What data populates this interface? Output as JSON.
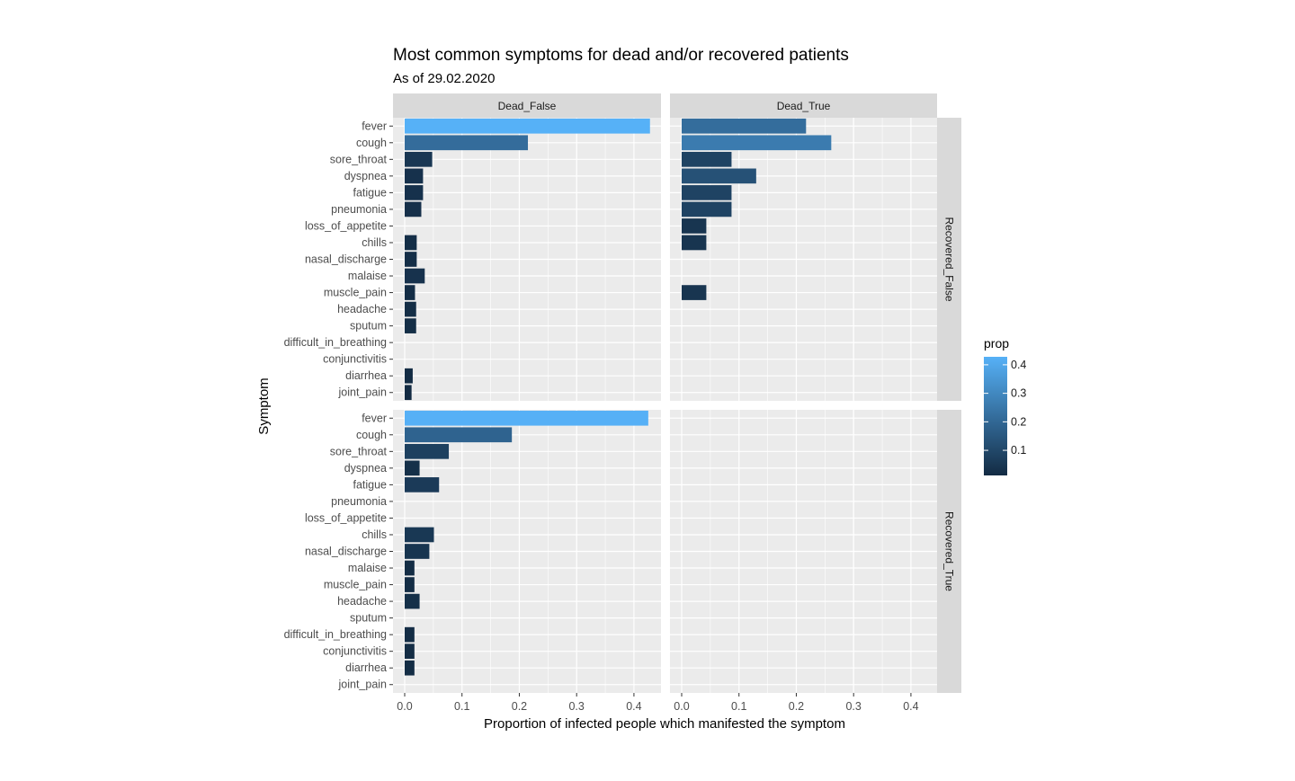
{
  "chart_data": {
    "type": "bar",
    "orientation": "horizontal",
    "title": "Most common symptoms for dead and/or recovered patients",
    "subtitle": "As of 29.02.2020",
    "xlabel": "Proportion of infected people which manifested the symptom",
    "ylabel": "Symptom",
    "xlim": [
      0,
      0.45
    ],
    "x_ticks": [
      0,
      0.1,
      0.2,
      0.3,
      0.4
    ],
    "x_tick_labels": [
      "0.0",
      "0.1",
      "0.2",
      "0.3",
      "0.4"
    ],
    "categories": [
      "fever",
      "cough",
      "sore_throat",
      "dyspnea",
      "fatigue",
      "pneumonia",
      "loss_of_appetite",
      "chills",
      "nasal_discharge",
      "malaise",
      "muscle_pain",
      "headache",
      "sputum",
      "difficult_in_breathing",
      "conjunctivitis",
      "diarrhea",
      "joint_pain"
    ],
    "facet_cols": [
      "Dead_False",
      "Dead_True"
    ],
    "facet_rows": [
      "Recovered_False",
      "Recovered_True"
    ],
    "panels": [
      {
        "col": "Dead_False",
        "row": "Recovered_False",
        "values": [
          0.428,
          0.215,
          0.048,
          0.032,
          0.032,
          0.029,
          0,
          0.021,
          0.021,
          0.035,
          0.018,
          0.02,
          0.02,
          0,
          0,
          0.014,
          0.012
        ]
      },
      {
        "col": "Dead_True",
        "row": "Recovered_False",
        "values": [
          0.217,
          0.261,
          0.087,
          0.13,
          0.087,
          0.087,
          0.043,
          0.043,
          0,
          0,
          0.043,
          0,
          0,
          0,
          0,
          0,
          0
        ]
      },
      {
        "col": "Dead_False",
        "row": "Recovered_True",
        "values": [
          0.425,
          0.187,
          0.077,
          0.026,
          0.06,
          0,
          0,
          0.051,
          0.043,
          0.017,
          0.017,
          0.026,
          0,
          0.017,
          0.017,
          0.017,
          0
        ]
      },
      {
        "col": "Dead_True",
        "row": "Recovered_True",
        "values": [
          0,
          0,
          0,
          0,
          0,
          0,
          0,
          0,
          0,
          0,
          0,
          0,
          0,
          0,
          0,
          0,
          0
        ]
      }
    ],
    "legend": {
      "title": "prop",
      "position": "right",
      "ticks": [
        0.1,
        0.2,
        0.3,
        0.4
      ],
      "tick_labels": [
        "0.1",
        "0.2",
        "0.3",
        "0.4"
      ],
      "range": [
        0.012,
        0.428
      ],
      "color_low": "#132B43",
      "color_high": "#56B1F7"
    },
    "grid": true,
    "panel_background": "#EBEBEB",
    "strip_background": "#D9D9D9"
  }
}
